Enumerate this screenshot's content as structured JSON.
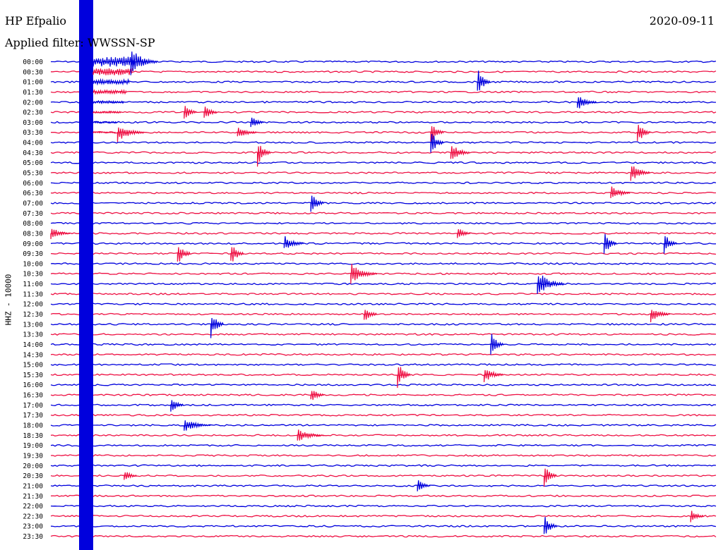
{
  "header": {
    "station": "HP Efpalio",
    "date": "2020-09-11",
    "filter_label": "Applied filter: WWSSN-SP",
    "channel_label": "HHZ - 10000"
  },
  "colors": {
    "trace_a": "#0000dd",
    "trace_b": "#ee1144",
    "background": "#ffffff",
    "text": "#000000"
  },
  "chart_data": {
    "type": "helicorder",
    "y_tick_labels": [
      "00:00",
      "00:30",
      "01:00",
      "01:30",
      "02:00",
      "02:30",
      "03:00",
      "03:30",
      "04:00",
      "04:30",
      "05:00",
      "05:30",
      "06:00",
      "06:30",
      "07:00",
      "07:30",
      "08:00",
      "08:30",
      "09:00",
      "09:30",
      "10:00",
      "10:30",
      "11:00",
      "11:30",
      "12:00",
      "12:30",
      "13:00",
      "13:30",
      "14:00",
      "14:30",
      "15:00",
      "15:30",
      "16:00",
      "16:30",
      "17:00",
      "17:30",
      "18:00",
      "18:30",
      "19:00",
      "19:30",
      "20:00",
      "20:30",
      "21:00",
      "21:30",
      "22:00",
      "22:30",
      "23:00",
      "23:30"
    ],
    "trace_colors": [
      "blue",
      "red"
    ],
    "events": [
      {
        "row": 0,
        "x": 0.12,
        "amp": 1.0,
        "dur": 0.04
      },
      {
        "row": 2,
        "x": 0.64,
        "amp": 1.0,
        "dur": 0.02
      },
      {
        "row": 4,
        "x": 0.79,
        "amp": 0.6,
        "dur": 0.03
      },
      {
        "row": 5,
        "x": 0.2,
        "amp": 0.6,
        "dur": 0.02
      },
      {
        "row": 5,
        "x": 0.23,
        "amp": 0.6,
        "dur": 0.02
      },
      {
        "row": 6,
        "x": 0.3,
        "amp": 0.5,
        "dur": 0.02
      },
      {
        "row": 7,
        "x": 0.1,
        "amp": 0.7,
        "dur": 0.04
      },
      {
        "row": 7,
        "x": 0.28,
        "amp": 0.5,
        "dur": 0.03
      },
      {
        "row": 7,
        "x": 0.57,
        "amp": 0.8,
        "dur": 0.02
      },
      {
        "row": 7,
        "x": 0.88,
        "amp": 0.9,
        "dur": 0.02
      },
      {
        "row": 8,
        "x": 0.57,
        "amp": 0.9,
        "dur": 0.02
      },
      {
        "row": 9,
        "x": 0.31,
        "amp": 1.0,
        "dur": 0.02
      },
      {
        "row": 9,
        "x": 0.6,
        "amp": 0.7,
        "dur": 0.03
      },
      {
        "row": 11,
        "x": 0.87,
        "amp": 0.7,
        "dur": 0.03
      },
      {
        "row": 13,
        "x": 0.84,
        "amp": 0.6,
        "dur": 0.03
      },
      {
        "row": 14,
        "x": 0.39,
        "amp": 0.9,
        "dur": 0.02
      },
      {
        "row": 17,
        "x": 0.0,
        "amp": 0.5,
        "dur": 0.03
      },
      {
        "row": 17,
        "x": 0.61,
        "amp": 0.5,
        "dur": 0.02
      },
      {
        "row": 18,
        "x": 0.35,
        "amp": 0.6,
        "dur": 0.03
      },
      {
        "row": 18,
        "x": 0.83,
        "amp": 0.9,
        "dur": 0.02
      },
      {
        "row": 18,
        "x": 0.92,
        "amp": 0.8,
        "dur": 0.02
      },
      {
        "row": 19,
        "x": 0.19,
        "amp": 0.9,
        "dur": 0.02
      },
      {
        "row": 19,
        "x": 0.27,
        "amp": 0.9,
        "dur": 0.02
      },
      {
        "row": 21,
        "x": 0.45,
        "amp": 0.8,
        "dur": 0.04
      },
      {
        "row": 22,
        "x": 0.73,
        "amp": 1.0,
        "dur": 0.04
      },
      {
        "row": 25,
        "x": 0.47,
        "amp": 0.6,
        "dur": 0.02
      },
      {
        "row": 25,
        "x": 0.9,
        "amp": 0.6,
        "dur": 0.03
      },
      {
        "row": 26,
        "x": 0.24,
        "amp": 1.0,
        "dur": 0.02
      },
      {
        "row": 28,
        "x": 0.66,
        "amp": 1.0,
        "dur": 0.02
      },
      {
        "row": 31,
        "x": 0.52,
        "amp": 1.0,
        "dur": 0.02
      },
      {
        "row": 31,
        "x": 0.65,
        "amp": 0.6,
        "dur": 0.03
      },
      {
        "row": 33,
        "x": 0.39,
        "amp": 0.6,
        "dur": 0.02
      },
      {
        "row": 34,
        "x": 0.18,
        "amp": 0.6,
        "dur": 0.02
      },
      {
        "row": 36,
        "x": 0.2,
        "amp": 0.5,
        "dur": 0.04
      },
      {
        "row": 37,
        "x": 0.37,
        "amp": 0.5,
        "dur": 0.04
      },
      {
        "row": 41,
        "x": 0.11,
        "amp": 0.5,
        "dur": 0.02
      },
      {
        "row": 41,
        "x": 0.74,
        "amp": 0.8,
        "dur": 0.02
      },
      {
        "row": 42,
        "x": 0.55,
        "amp": 0.5,
        "dur": 0.02
      },
      {
        "row": 45,
        "x": 0.96,
        "amp": 0.5,
        "dur": 0.02
      },
      {
        "row": 46,
        "x": 0.74,
        "amp": 0.8,
        "dur": 0.02
      }
    ]
  }
}
